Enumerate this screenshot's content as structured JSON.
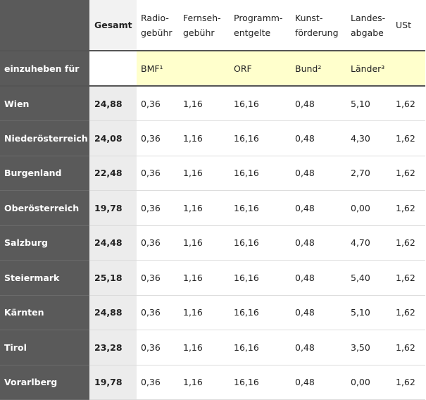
{
  "headers": {
    "col0": "",
    "gesamt": "Gesamt",
    "radio": [
      "Radio-",
      "gebühr"
    ],
    "fernseh": [
      "Fernseh-",
      "gebühr"
    ],
    "programm": [
      "Programm-",
      "entgelte"
    ],
    "kunst": [
      "Kunst-",
      "förderung"
    ],
    "landes": [
      "Landes-",
      "abgabe"
    ],
    "ust": "USt"
  },
  "subheader": {
    "label": "einzuheben für",
    "gesamt": "",
    "radio": "BMF¹",
    "fernseh": "",
    "programm": "ORF",
    "kunst": "Bund²",
    "landes": "Länder³",
    "ust": ""
  },
  "rows": [
    {
      "land": "Wien",
      "gesamt": "24,88",
      "radio": "0,36",
      "fernseh": "1,16",
      "programm": "16,16",
      "kunst": "0,48",
      "landes": "5,10",
      "ust": "1,62"
    },
    {
      "land": "Niederösterreich",
      "gesamt": "24,08",
      "radio": "0,36",
      "fernseh": "1,16",
      "programm": "16,16",
      "kunst": "0,48",
      "landes": "4,30",
      "ust": "1,62"
    },
    {
      "land": "Burgenland",
      "gesamt": "22,48",
      "radio": "0,36",
      "fernseh": "1,16",
      "programm": "16,16",
      "kunst": "0,48",
      "landes": "2,70",
      "ust": "1,62"
    },
    {
      "land": "Oberösterreich",
      "gesamt": "19,78",
      "radio": "0,36",
      "fernseh": "1,16",
      "programm": "16,16",
      "kunst": "0,48",
      "landes": "0,00",
      "ust": "1,62"
    },
    {
      "land": "Salzburg",
      "gesamt": "24,48",
      "radio": "0,36",
      "fernseh": "1,16",
      "programm": "16,16",
      "kunst": "0,48",
      "landes": "4,70",
      "ust": "1,62"
    },
    {
      "land": "Steiermark",
      "gesamt": "25,18",
      "radio": "0,36",
      "fernseh": "1,16",
      "programm": "16,16",
      "kunst": "0,48",
      "landes": "5,40",
      "ust": "1,62"
    },
    {
      "land": "Kärnten",
      "gesamt": "24,88",
      "radio": "0,36",
      "fernseh": "1,16",
      "programm": "16,16",
      "kunst": "0,48",
      "landes": "5,10",
      "ust": "1,62"
    },
    {
      "land": "Tirol",
      "gesamt": "23,28",
      "radio": "0,36",
      "fernseh": "1,16",
      "programm": "16,16",
      "kunst": "0,48",
      "landes": "3,50",
      "ust": "1,62"
    },
    {
      "land": "Vorarlberg",
      "gesamt": "19,78",
      "radio": "0,36",
      "fernseh": "1,16",
      "programm": "16,16",
      "kunst": "0,48",
      "landes": "0,00",
      "ust": "1,62"
    }
  ],
  "colors": {
    "row_header_bg": "#5a5a5a",
    "subheader_bg": "#ffffcc",
    "gesamt_bg": "#ececec"
  }
}
